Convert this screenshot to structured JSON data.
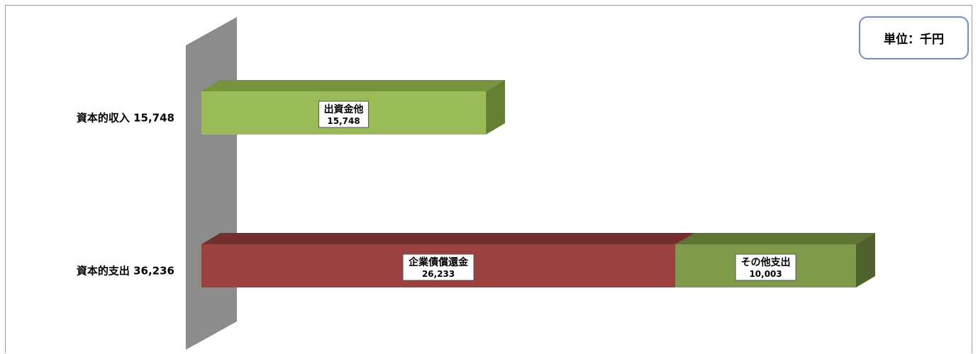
{
  "unit_label": "単位：千円",
  "chart_data": {
    "type": "bar",
    "orientation": "horizontal",
    "stacked": true,
    "style": "3d",
    "title": "",
    "categories": [
      {
        "name": "資本的収入",
        "total": 15748,
        "total_text": "15,748"
      },
      {
        "name": "資本的支出",
        "total": 36236,
        "total_text": "36,236"
      }
    ],
    "series": [
      {
        "category_index": 0,
        "name": "出資金他",
        "value": 15748,
        "value_text": "15,748",
        "color": "#9bbb59",
        "top_color": "#77933c",
        "side_color": "#647f33"
      },
      {
        "category_index": 1,
        "name": "企業債償還金",
        "value": 26233,
        "value_text": "26,233",
        "color": "#9c4140",
        "top_color": "#732f2e",
        "side_color": "#5e2625"
      },
      {
        "category_index": 1,
        "name": "その他支出",
        "value": 10003,
        "value_text": "10,003",
        "color": "#7f9a48",
        "top_color": "#5f7335",
        "side_color": "#4f612c"
      }
    ],
    "xlim": [
      0,
      36236
    ],
    "axis_wall_color": "#8c8c8c",
    "grid": false,
    "legend": "none"
  }
}
